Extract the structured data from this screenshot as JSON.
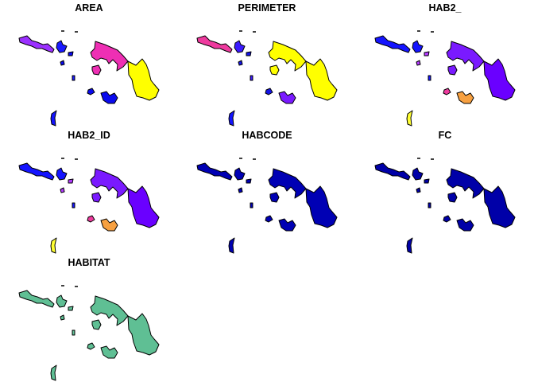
{
  "chart_data": {
    "type": "map",
    "layout": {
      "columns": 3,
      "rows": 3
    },
    "panels": [
      {
        "title": "AREA",
        "fills": {
          "west": "#9b30ff",
          "west_small": "#1a1aff",
          "islet": "#0a0aee",
          "mid": "#ee2fb4",
          "east": "#ffff00",
          "south": "#0a0aee",
          "south_isle": "#0a0aee",
          "far": "#1414ff"
        }
      },
      {
        "title": "PERIMETER",
        "fills": {
          "west": "#ee3a9e",
          "west_small": "#3b1aff",
          "islet": "#1414e6",
          "mid": "#ffff00",
          "east": "#ffff00",
          "south": "#7a1aff",
          "south_isle": "#1414e6",
          "far": "#1414ff"
        }
      },
      {
        "title": "HAB2_",
        "fills": {
          "west": "#1414ff",
          "west_small": "#1414ff",
          "islet": "#b43cff",
          "mid": "#7a1aff",
          "east": "#6a00ff",
          "south": "#f7a040",
          "south_isle": "#ee3a9e",
          "far": "#ffff33"
        }
      },
      {
        "title": "HAB2_ID",
        "fills": {
          "west": "#1414ff",
          "west_small": "#1414ff",
          "islet": "#b43cff",
          "mid": "#7a1aff",
          "east": "#6a00ff",
          "south": "#f7a040",
          "south_isle": "#ee3a9e",
          "far": "#ffff33"
        }
      },
      {
        "title": "HABCODE",
        "fills": {
          "west": "#0000b4",
          "west_small": "#0000b4",
          "islet": "#0000b4",
          "mid": "#0000b4",
          "east": "#0000b4",
          "south": "#0000b4",
          "south_isle": "#0000b4",
          "far": "#0000b4"
        }
      },
      {
        "title": "FC",
        "fills": {
          "west": "#0000a8",
          "west_small": "#0000a8",
          "islet": "#0000a8",
          "mid": "#0000a8",
          "east": "#0000a8",
          "south": "#0000a8",
          "south_isle": "#0000a8",
          "far": "#0000a8"
        }
      },
      {
        "title": "HABITAT",
        "fills": {
          "west": "#5fbf94",
          "west_small": "#5fbf94",
          "islet": "#5fbf94",
          "mid": "#5fbf94",
          "east": "#5fbf94",
          "south": "#5fbf94",
          "south_isle": "#5fbf94",
          "far": "#5fbf94"
        }
      }
    ]
  }
}
